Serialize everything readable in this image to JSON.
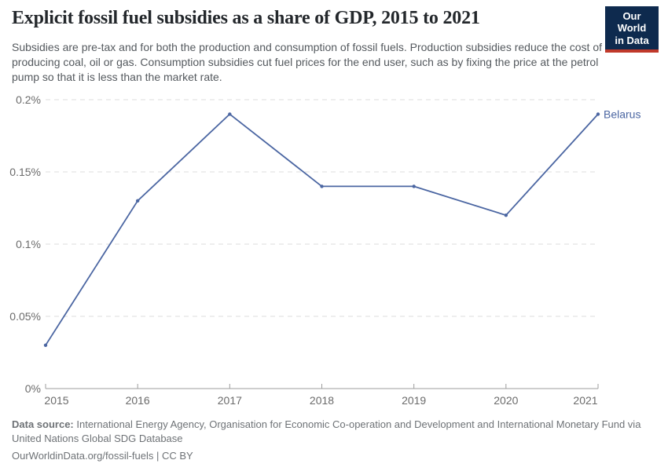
{
  "header": {
    "title": "Explicit fossil fuel subsidies as a share of GDP, 2015 to 2021",
    "subtitle": "Subsidies are pre-tax and for both the production and consumption of fossil fuels. Production subsidies reduce the cost of producing coal, oil or gas. Consumption subsidies cut fuel prices for the end user, such as by fixing the price at the petrol pump so that it is less than the market rate.",
    "logo": {
      "line1": "Our World",
      "line2": "in Data",
      "bg_color": "#0e2a4e",
      "accent_color": "#c0392b"
    }
  },
  "chart_data": {
    "type": "line",
    "title": "Explicit fossil fuel subsidies as a share of GDP, 2015 to 2021",
    "x": [
      2015,
      2016,
      2017,
      2018,
      2019,
      2020,
      2021
    ],
    "xtick_labels": [
      "2015",
      "2016",
      "2017",
      "2018",
      "2019",
      "2020",
      "2021"
    ],
    "series": [
      {
        "name": "Belarus",
        "values": [
          0.03,
          0.13,
          0.19,
          0.14,
          0.14,
          0.12,
          0.19
        ],
        "color": "#4b66a2"
      }
    ],
    "xlabel": "",
    "ylabel": "",
    "ylim": [
      0,
      0.2
    ],
    "yticks": [
      0,
      0.05,
      0.1,
      0.15,
      0.2
    ],
    "ytick_labels": [
      "0%",
      "0.05%",
      "0.1%",
      "0.15%",
      "0.2%"
    ],
    "grid": "horizontal-dashed",
    "legend_position": "end-of-line-label"
  },
  "footer": {
    "source_label": "Data source:",
    "source_text": " International Energy Agency, Organisation for Economic Co-operation and Development and International Monetary Fund via United Nations Global SDG Database",
    "license_text": "OurWorldinData.org/fossil-fuels | CC BY"
  },
  "colors": {
    "line": "#4b66a2",
    "grid": "#dcdcdc",
    "axis": "#9c9c9c",
    "tick_label": "#6b6b6b",
    "title": "#23272b",
    "subtitle": "#54595e",
    "footer": "#6e7276"
  }
}
